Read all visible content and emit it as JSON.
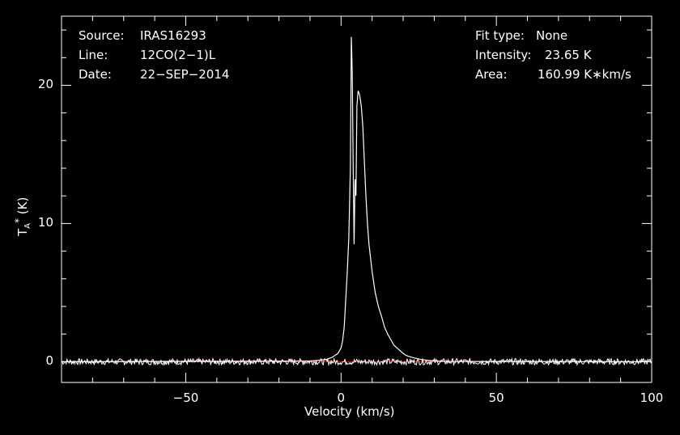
{
  "chart_data": {
    "type": "line",
    "xlabel": "Velocity (km/s)",
    "ylabel": {
      "main": "T",
      "sub": "A",
      "sup": "*",
      "unit": " (K)"
    },
    "xlim": [
      -90,
      100
    ],
    "ylim": [
      -1.5,
      25
    ],
    "xticks": [
      -50,
      0,
      50,
      100
    ],
    "xtick_labels": [
      "−50",
      "0",
      "50",
      "100"
    ],
    "yticks": [
      0,
      10,
      20
    ],
    "ytick_labels": [
      "0",
      "10",
      "20"
    ],
    "grid": false,
    "baseline": {
      "y": 0,
      "color": "#ff0000"
    },
    "info": {
      "source_label": "Source:",
      "source": "IRAS16293",
      "line_label": "Line:",
      "line": "12CO(2−1)L",
      "date_label": "Date:",
      "date": "22−SEP−2014",
      "fit_label": "Fit type:",
      "fit": "None",
      "intensity_label": "Intensity:",
      "intensity": "23.65 K",
      "area_label": "Area:",
      "area": "160.99 K∗km/s"
    },
    "series": [
      {
        "color": "#ffffff",
        "points": [
          [
            -90,
            0.0
          ],
          [
            -10,
            0.05
          ],
          [
            -5,
            0.15
          ],
          [
            -3,
            0.3
          ],
          [
            -1,
            0.6
          ],
          [
            0,
            1.0
          ],
          [
            0.5,
            1.5
          ],
          [
            1,
            2.5
          ],
          [
            1.5,
            4.5
          ],
          [
            2,
            6.5
          ],
          [
            2.5,
            9
          ],
          [
            3,
            14
          ],
          [
            3.3,
            23.5
          ],
          [
            3.6,
            21
          ],
          [
            3.9,
            14
          ],
          [
            4.2,
            8.5
          ],
          [
            4.5,
            13.2
          ],
          [
            4.8,
            12
          ],
          [
            5.1,
            18.5
          ],
          [
            5.5,
            19.6
          ],
          [
            6,
            19.3
          ],
          [
            6.5,
            18.5
          ],
          [
            7,
            17
          ],
          [
            7.5,
            14.5
          ],
          [
            8,
            12
          ],
          [
            8.5,
            10
          ],
          [
            9,
            8.5
          ],
          [
            10,
            6.5
          ],
          [
            11,
            5
          ],
          [
            12,
            4
          ],
          [
            13,
            3.3
          ],
          [
            14,
            2.5
          ],
          [
            15,
            2
          ],
          [
            16,
            1.6
          ],
          [
            17,
            1.2
          ],
          [
            18,
            1
          ],
          [
            19,
            0.8
          ],
          [
            20,
            0.6
          ],
          [
            21,
            0.45
          ],
          [
            23,
            0.3
          ],
          [
            26,
            0.15
          ],
          [
            30,
            0.05
          ],
          [
            35,
            0.02
          ],
          [
            100,
            0.0
          ]
        ]
      }
    ]
  }
}
